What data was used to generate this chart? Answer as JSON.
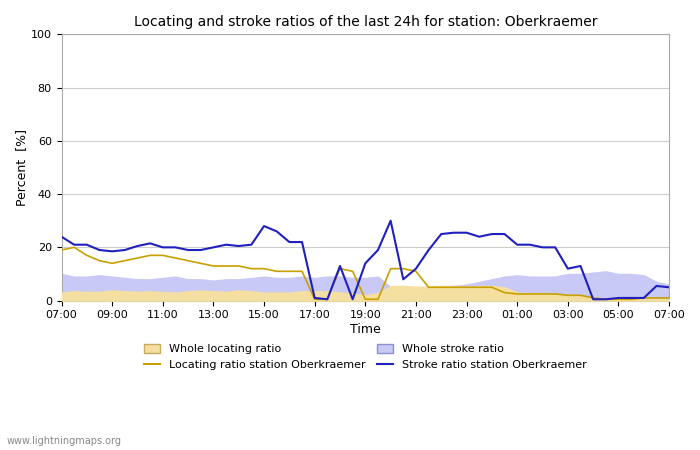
{
  "title": "Locating and stroke ratios of the last 24h for station: Oberkraemer",
  "xlabel": "Time",
  "ylabel": "Percent  [%]",
  "ylim": [
    0,
    100
  ],
  "yticks": [
    0,
    20,
    40,
    60,
    80,
    100
  ],
  "watermark": "www.lightningmaps.org",
  "time_labels": [
    "07:00",
    "09:00",
    "11:00",
    "13:00",
    "15:00",
    "17:00",
    "19:00",
    "21:00",
    "23:00",
    "01:00",
    "03:00",
    "05:00",
    "07:00"
  ],
  "whole_locating_color": "#f5dfa0",
  "whole_locating_edge": "#c8aa60",
  "whole_stroke_color": "#c8caf5",
  "whole_stroke_edge": "#8890d0",
  "locating_station_color": "#c8a000",
  "stroke_station_color": "#2020c0",
  "x": [
    0,
    0.5,
    1,
    1.5,
    2,
    2.5,
    3,
    3.5,
    4,
    4.5,
    5,
    5.5,
    6,
    6.5,
    7,
    7.5,
    8,
    8.5,
    9,
    9.5,
    10,
    10.5,
    11,
    11.5,
    12,
    12.5,
    13,
    13.5,
    14,
    14.5,
    15,
    15.5,
    16,
    16.5,
    17,
    17.5,
    18,
    18.5,
    19,
    19.5,
    20,
    20.5,
    21,
    21.5,
    22,
    22.5,
    23,
    23.5,
    24
  ],
  "whole_locating": [
    3,
    3.5,
    3.2,
    3.3,
    3.8,
    3.5,
    3.3,
    3.5,
    3.2,
    3.0,
    3.5,
    3.8,
    3.5,
    3.3,
    3.8,
    3.5,
    3.0,
    3.0,
    3.0,
    3.5,
    3.5,
    3.5,
    3.0,
    2.5,
    2.0,
    2.8,
    5.5,
    5.5,
    5.2,
    5.2,
    5.5,
    5.5,
    5.2,
    5.5,
    5.5,
    5.0,
    3.0,
    2.8,
    2.8,
    2.5,
    2.0,
    2.0,
    1.0,
    0.5,
    0.5,
    0.5,
    0.5,
    0.5,
    0.5
  ],
  "whole_stroke": [
    10,
    9,
    9,
    9.5,
    9,
    8.5,
    8,
    8,
    8.5,
    9,
    8,
    8,
    7.5,
    8,
    8,
    8.5,
    9,
    8.5,
    8.5,
    9,
    8.5,
    9,
    9,
    8.5,
    8.5,
    9,
    5,
    4,
    4,
    5,
    5,
    5.5,
    6,
    7,
    8,
    9,
    9.5,
    9,
    9,
    9,
    10,
    10,
    10.5,
    11,
    10,
    10,
    9.5,
    7,
    6
  ],
  "locating_station": [
    19,
    20,
    17,
    15,
    14,
    15,
    16,
    17,
    17,
    16,
    15,
    14,
    13,
    13,
    13,
    12,
    12,
    11,
    11,
    11,
    0.5,
    0.5,
    12,
    11,
    0.5,
    0.5,
    12,
    12,
    11,
    5,
    5,
    5,
    5,
    5,
    5,
    3,
    2.5,
    2.5,
    2.5,
    2.5,
    2,
    2,
    1,
    0.5,
    0.5,
    0.5,
    1,
    1,
    1
  ],
  "stroke_station": [
    24,
    21,
    21,
    19,
    18.5,
    19,
    20.5,
    21.5,
    20,
    20,
    19,
    19,
    20,
    21,
    20.5,
    21,
    28,
    26,
    22,
    22,
    1,
    0.5,
    13,
    0.5,
    14,
    19,
    30,
    8,
    12,
    19,
    25,
    25.5,
    25.5,
    24,
    25,
    25,
    21,
    21,
    20,
    20,
    12,
    13,
    0.5,
    0.5,
    1,
    1,
    1,
    5.5,
    5
  ]
}
